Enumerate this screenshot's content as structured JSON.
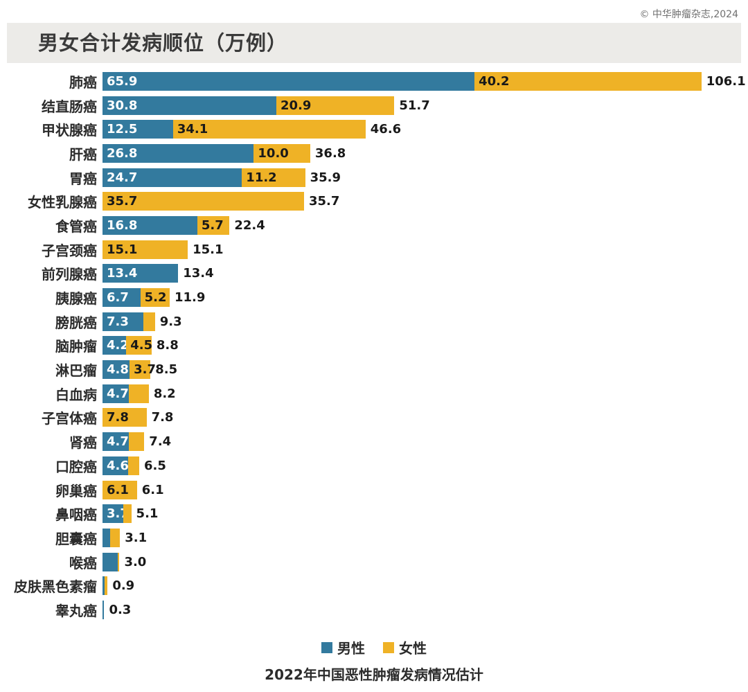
{
  "copyright": "© 中华肿瘤杂志,2024",
  "header": {
    "title": "男女合计发病顺位（万例）"
  },
  "legend": {
    "male_label": "男性",
    "female_label": "女性"
  },
  "caption": "2022年中国恶性肿瘤发病情况估计",
  "colors": {
    "male": "#337A9E",
    "female": "#EFB226",
    "header_bg": "#ECEBE8",
    "text_dark": "#191919",
    "text_on_male": "#ffffff"
  },
  "chart_data": {
    "type": "bar",
    "orientation": "horizontal",
    "stacked": true,
    "unit": "万例",
    "title": "男女合计发病顺位（万例）",
    "caption": "2022年中国恶性肿瘤发病情况估计",
    "legend_position": "bottom",
    "grid": false,
    "xlim": [
      0,
      110
    ],
    "label_min_value": 3.7,
    "categories": [
      "肺癌",
      "结直肠癌",
      "甲状腺癌",
      "肝癌",
      "胃癌",
      "女性乳腺癌",
      "食管癌",
      "子宫颈癌",
      "前列腺癌",
      "胰腺癌",
      "膀胱癌",
      "脑肿瘤",
      "淋巴瘤",
      "白血病",
      "子宫体癌",
      "肾癌",
      "口腔癌",
      "卵巢癌",
      "鼻咽癌",
      "胆囊癌",
      "喉癌",
      "皮肤黑色素瘤",
      "睾丸癌"
    ],
    "series": [
      {
        "name": "男性",
        "color": "#337A9E",
        "values": [
          65.9,
          30.8,
          12.5,
          26.8,
          24.7,
          0,
          16.8,
          0,
          13.4,
          6.7,
          7.3,
          4.2,
          4.8,
          4.7,
          0,
          4.7,
          4.6,
          0,
          3.7,
          1.4,
          2.7,
          0.4,
          0.3
        ]
      },
      {
        "name": "女性",
        "color": "#EFB226",
        "values": [
          40.2,
          20.9,
          34.1,
          10.0,
          11.2,
          35.7,
          5.7,
          15.1,
          0,
          5.2,
          2.0,
          4.5,
          3.7,
          3.5,
          7.8,
          2.7,
          1.9,
          6.1,
          1.4,
          1.7,
          0.3,
          0.5,
          0
        ]
      }
    ],
    "totals": [
      106.1,
      51.7,
      46.6,
      36.8,
      35.9,
      35.7,
      22.4,
      15.1,
      13.4,
      11.9,
      9.3,
      8.8,
      8.5,
      8.2,
      7.8,
      7.4,
      6.5,
      6.1,
      5.1,
      3.1,
      3.0,
      0.9,
      0.3
    ]
  }
}
